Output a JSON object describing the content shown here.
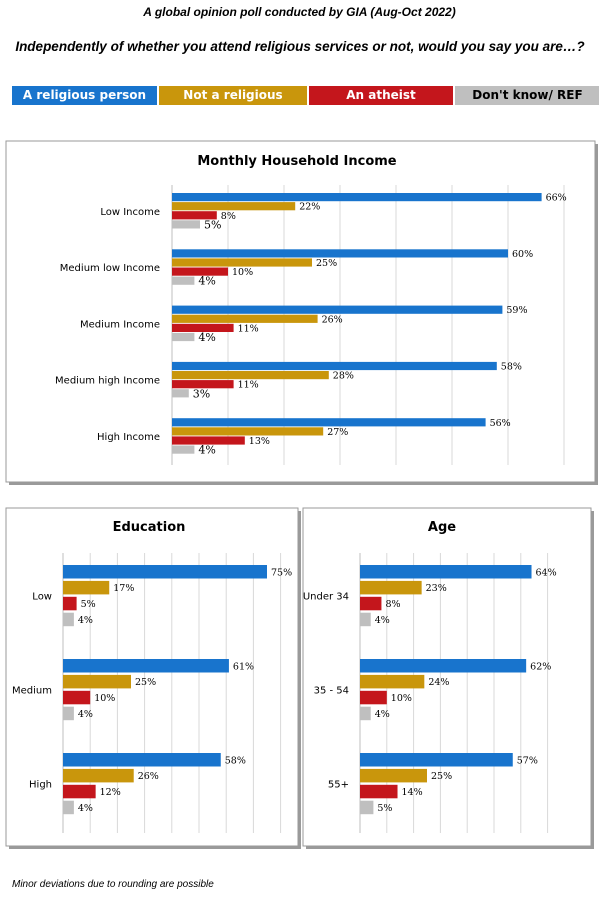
{
  "header": {
    "subtitle": "A global opinion poll conducted by GIA (Aug-Oct 2022)",
    "question": "Independently of whether you attend religious services or not, would you say you are…?"
  },
  "legend": [
    {
      "label": "A religious person",
      "color": "#1874CD"
    },
    {
      "label": "Not a religious person",
      "color": "#C9960C"
    },
    {
      "label": "An atheist",
      "color": "#C4161C"
    },
    {
      "label": "Don't know/ REF",
      "color": "#BFBFBF"
    }
  ],
  "chart_data": [
    {
      "type": "bar",
      "orientation": "horizontal",
      "title": "Monthly Household Income",
      "categories": [
        "Low  Income",
        "Medium low Income",
        "Medium Income",
        "Medium high Income",
        "High Income"
      ],
      "series": [
        {
          "name": "A religious person",
          "values": [
            66,
            60,
            59,
            58,
            56
          ],
          "labels": [
            "66%",
            "60%",
            "59%",
            "58%",
            "56%"
          ]
        },
        {
          "name": "Not a religious person",
          "values": [
            22,
            25,
            26,
            28,
            27
          ],
          "labels": [
            "22%",
            "25%",
            "26%",
            "28%",
            "27%"
          ]
        },
        {
          "name": "An atheist",
          "values": [
            8,
            10,
            11,
            11,
            13
          ],
          "labels": [
            "8%",
            "10%",
            "11%",
            "11%",
            "13%"
          ]
        },
        {
          "name": "Don't know/ REF",
          "values": [
            5,
            4,
            4,
            3,
            4
          ],
          "labels": [
            "5%",
            "4%",
            "4%",
            "3%",
            "4%"
          ]
        }
      ],
      "xlim": [
        0,
        70
      ],
      "grid": true
    },
    {
      "type": "bar",
      "orientation": "horizontal",
      "title": "Education",
      "categories": [
        "Low",
        "Medium",
        "High"
      ],
      "series": [
        {
          "name": "A religious person",
          "values": [
            75,
            61,
            58
          ],
          "labels": [
            "75%",
            "61%",
            "58%"
          ]
        },
        {
          "name": "Not a religious person",
          "values": [
            17,
            25,
            26
          ],
          "labels": [
            "17%",
            "25%",
            "26%"
          ]
        },
        {
          "name": "An atheist",
          "values": [
            5,
            10,
            12
          ],
          "labels": [
            "5%",
            "10%",
            "12%"
          ]
        },
        {
          "name": "Don't know/ REF",
          "values": [
            4,
            4,
            4
          ],
          "labels": [
            "4%",
            "4%",
            "4%"
          ]
        }
      ],
      "xlim": [
        0,
        80
      ],
      "grid": true
    },
    {
      "type": "bar",
      "orientation": "horizontal",
      "title": "Age",
      "categories": [
        "Under 34",
        "35 - 54",
        "55+"
      ],
      "series": [
        {
          "name": "A religious person",
          "values": [
            64,
            62,
            57
          ],
          "labels": [
            "64%",
            "62%",
            "57%"
          ]
        },
        {
          "name": "Not a religious person",
          "values": [
            23,
            24,
            25
          ],
          "labels": [
            "23%",
            "24%",
            "25%"
          ]
        },
        {
          "name": "An atheist",
          "values": [
            8,
            10,
            14
          ],
          "labels": [
            "8%",
            "10%",
            "14%"
          ]
        },
        {
          "name": "Don't know/ REF",
          "values": [
            4,
            4,
            5
          ],
          "labels": [
            "4%",
            "4%",
            "5%"
          ]
        }
      ],
      "xlim": [
        0,
        70
      ],
      "grid": true
    }
  ],
  "footnote": "Minor deviations due to rounding are possible"
}
